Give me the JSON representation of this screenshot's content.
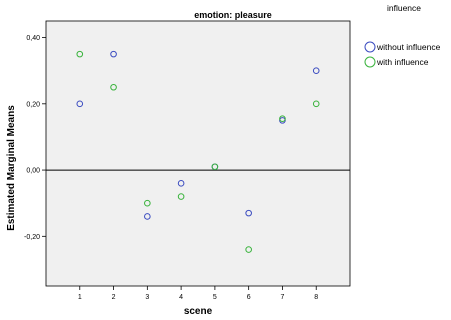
{
  "chart_data": {
    "type": "scatter",
    "title": "emotion: pleasure",
    "xlabel": "scene",
    "ylabel": "Estimated Marginal Means",
    "x": [
      1,
      2,
      3,
      4,
      5,
      6,
      7,
      8
    ],
    "x_tick_labels": [
      "1",
      "2",
      "3",
      "4",
      "5",
      "6",
      "7",
      "8"
    ],
    "y_ticks": [
      0.4,
      0.2,
      0.0,
      -0.2
    ],
    "y_tick_labels": [
      "0,40",
      "0,20",
      "0,00",
      "-0,20"
    ],
    "xlim": [
      0,
      9
    ],
    "ylim": [
      -0.35,
      0.45
    ],
    "reference_line_y": 0.0,
    "grid": false,
    "legend_title": "influence",
    "legend_position": "top-right",
    "series": [
      {
        "name": "without influence",
        "color": "#3b4cc0",
        "values": [
          0.2,
          0.35,
          -0.14,
          -0.04,
          0.01,
          -0.13,
          0.15,
          0.3
        ]
      },
      {
        "name": "with influence",
        "color": "#39b33c",
        "values": [
          0.35,
          0.25,
          -0.1,
          -0.08,
          0.01,
          -0.24,
          0.155,
          0.2
        ]
      }
    ]
  }
}
